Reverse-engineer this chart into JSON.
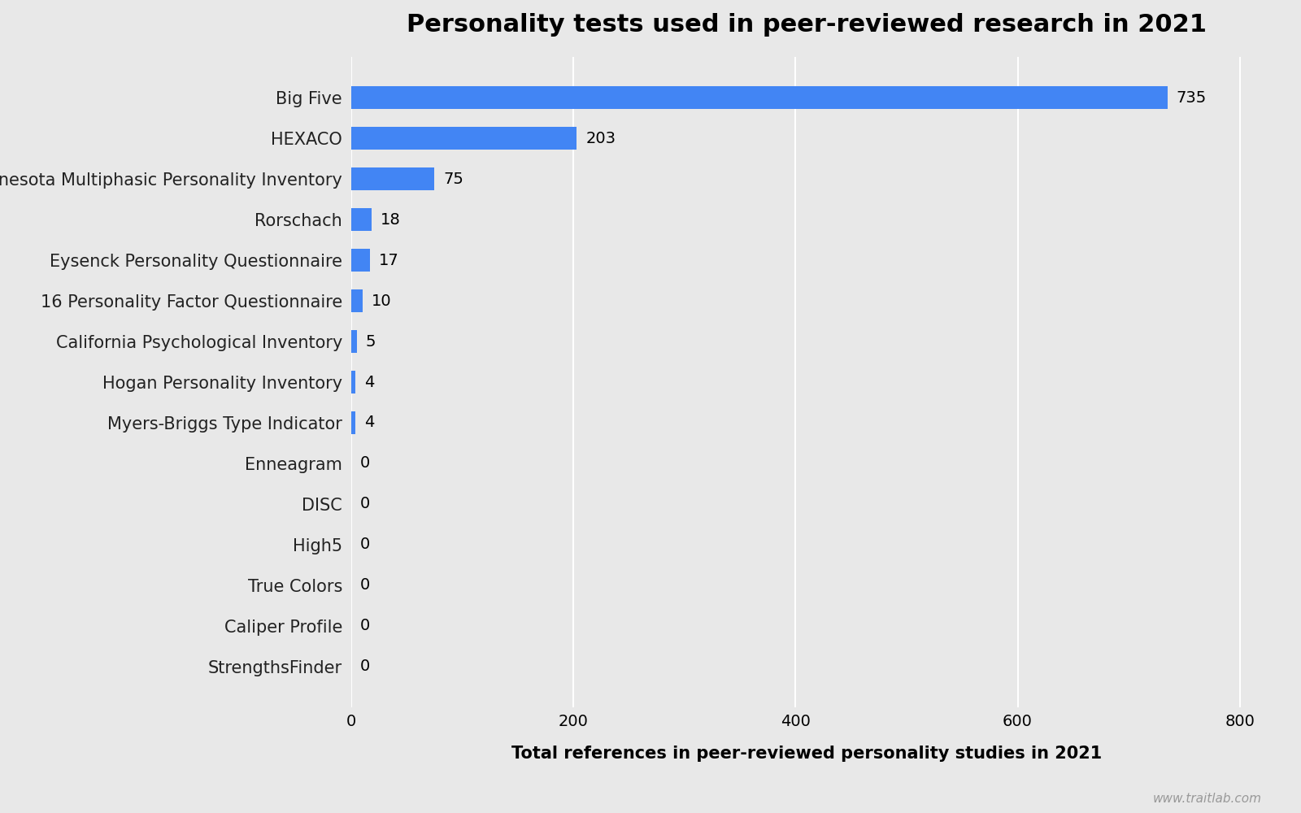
{
  "title": "Personality tests used in peer-reviewed research in 2021",
  "xlabel": "Total references in peer-reviewed personality studies in 2021",
  "categories": [
    "Big Five",
    "HEXACO",
    "Minnesota Multiphasic Personality Inventory",
    "Rorschach",
    "Eysenck Personality Questionnaire",
    "16 Personality Factor Questionnaire",
    "California Psychological Inventory",
    "Hogan Personality Inventory",
    "Myers-Briggs Type Indicator",
    "Enneagram",
    "DISC",
    "High5",
    "True Colors",
    "Caliper Profile",
    "StrengthsFinder"
  ],
  "values": [
    735,
    203,
    75,
    18,
    17,
    10,
    5,
    4,
    4,
    0,
    0,
    0,
    0,
    0,
    0
  ],
  "bar_color": "#4285f4",
  "background_color": "#e8e8e8",
  "title_fontsize": 22,
  "label_fontsize": 15,
  "xlabel_fontsize": 15,
  "tick_fontsize": 14,
  "value_fontsize": 14,
  "watermark": "www.traitlab.com",
  "xlim": [
    0,
    820
  ],
  "xticks": [
    0,
    200,
    400,
    600,
    800
  ]
}
